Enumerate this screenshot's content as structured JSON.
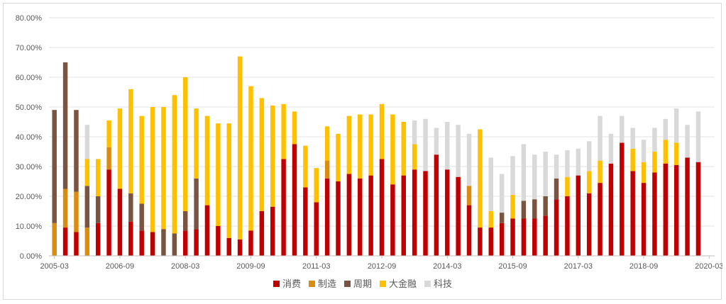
{
  "chart_data": {
    "type": "bar",
    "stacked": true,
    "title": "",
    "xlabel": "",
    "ylabel": "",
    "ylim": [
      0,
      80
    ],
    "y_tick_values": [
      0,
      10,
      20,
      30,
      40,
      50,
      60,
      70,
      80
    ],
    "y_tick_labels": [
      "0.00%",
      "10.00%",
      "20.00%",
      "30.00%",
      "40.00%",
      "50.00%",
      "60.00%",
      "70.00%",
      "80.00%"
    ],
    "x_tick_labels": [
      "2005-03",
      "2006-09",
      "2008-03",
      "2009-09",
      "2011-03",
      "2012-09",
      "2014-03",
      "2015-09",
      "2017-03",
      "2018-09",
      "2020-03"
    ],
    "x_tick_positions": [
      0,
      6,
      12,
      18,
      24,
      30,
      36,
      42,
      48,
      54,
      60
    ],
    "grid": "horizontal",
    "legend_position": "bottom",
    "categories": [
      "2005-03",
      "2005-06",
      "2005-09",
      "2005-12",
      "2006-03",
      "2006-06",
      "2006-09",
      "2006-12",
      "2007-03",
      "2007-06",
      "2007-09",
      "2007-12",
      "2008-03",
      "2008-06",
      "2008-09",
      "2008-12",
      "2009-03",
      "2009-06",
      "2009-09",
      "2009-12",
      "2010-03",
      "2010-06",
      "2010-09",
      "2010-12",
      "2011-03",
      "2011-06",
      "2011-09",
      "2011-12",
      "2012-03",
      "2012-06",
      "2012-09",
      "2012-12",
      "2013-03",
      "2013-06",
      "2013-09",
      "2013-12",
      "2014-03",
      "2014-06",
      "2014-09",
      "2014-12",
      "2015-03",
      "2015-06",
      "2015-09",
      "2015-12",
      "2016-03",
      "2016-06",
      "2016-09",
      "2016-12",
      "2017-03",
      "2017-06",
      "2017-09",
      "2017-12",
      "2018-03",
      "2018-06",
      "2018-09",
      "2018-12",
      "2019-03",
      "2019-06",
      "2019-09",
      "2019-12",
      "2020-03"
    ],
    "series": [
      {
        "name": "消费",
        "color": "#c00000",
        "values": [
          0,
          9.5,
          8,
          0,
          11,
          29,
          22.5,
          11.5,
          8.5,
          8,
          0,
          0,
          8.5,
          9,
          17,
          10,
          6,
          5.5,
          8.5,
          15,
          16.5,
          32.5,
          37.5,
          23,
          18,
          26,
          25,
          27.5,
          26,
          27,
          32.5,
          24,
          27,
          29,
          28.5,
          34,
          29,
          26.5,
          17,
          9.5,
          9.5,
          11,
          12.5,
          12.5,
          12.5,
          13.5,
          19,
          20,
          27,
          21,
          24.5,
          31,
          38,
          28.5,
          24.5,
          28,
          31,
          30.5,
          33,
          31.5,
          0
        ]
      },
      {
        "name": "制造",
        "color": "#d98c10",
        "values": [
          11,
          13,
          13.5,
          9.5,
          0,
          7.5,
          0,
          0,
          0,
          0,
          0,
          0,
          0,
          0,
          0,
          0,
          0,
          0,
          0,
          0,
          0,
          0,
          0,
          0,
          0,
          6,
          0,
          0,
          0,
          0,
          0,
          0,
          0,
          0,
          0,
          0,
          0,
          0,
          6.5,
          0,
          0,
          0,
          0,
          0,
          0,
          0,
          0,
          0,
          0,
          0,
          0,
          0,
          0,
          0,
          0,
          0,
          0,
          0,
          0,
          0,
          0
        ]
      },
      {
        "name": "周期",
        "color": "#7a5441",
        "values": [
          38,
          42.5,
          27.5,
          14,
          9,
          0,
          0,
          9.5,
          9,
          0,
          9,
          7.5,
          6.5,
          17,
          0,
          0,
          0,
          0,
          0,
          0,
          0,
          0,
          0,
          0,
          0,
          0,
          0,
          0,
          0,
          0,
          0,
          0,
          0,
          0,
          0,
          0,
          0,
          0,
          0,
          0,
          0,
          3.5,
          0,
          6,
          6.5,
          6.5,
          7,
          0,
          0,
          0,
          0,
          0,
          0,
          0,
          0,
          0,
          0,
          0,
          0,
          0,
          0
        ]
      },
      {
        "name": "大金融",
        "color": "#ffc000",
        "values": [
          0,
          0,
          0,
          9,
          12.5,
          9,
          27,
          35,
          29.5,
          42,
          41,
          46.5,
          45,
          23.5,
          30,
          34.5,
          38.5,
          61.5,
          48.5,
          38,
          34,
          18.5,
          11,
          14,
          11.5,
          11.5,
          16,
          19.5,
          21.5,
          20.5,
          18.5,
          23.5,
          18,
          8.5,
          0,
          0,
          0,
          0,
          0,
          33,
          5.5,
          0,
          8,
          0,
          0,
          0,
          0,
          6.5,
          0,
          7.5,
          7.5,
          0,
          0,
          7.5,
          7,
          7,
          8,
          7.5,
          0,
          0,
          0
        ]
      },
      {
        "name": "科技",
        "color": "#d9d9d9",
        "values": [
          0,
          0,
          0,
          11.5,
          0,
          0,
          0,
          0,
          0,
          0,
          0,
          0,
          0,
          0,
          0,
          0,
          0,
          0,
          0,
          0,
          0,
          0,
          0,
          0,
          0,
          0,
          0,
          0,
          0,
          0,
          0,
          0,
          0,
          8,
          17.5,
          9,
          16,
          17.5,
          17.5,
          0,
          18,
          13,
          13,
          19,
          15,
          15,
          8,
          9,
          9,
          10,
          15,
          10,
          9,
          7,
          7.5,
          8,
          7,
          11.5,
          11,
          17,
          0
        ]
      }
    ]
  }
}
